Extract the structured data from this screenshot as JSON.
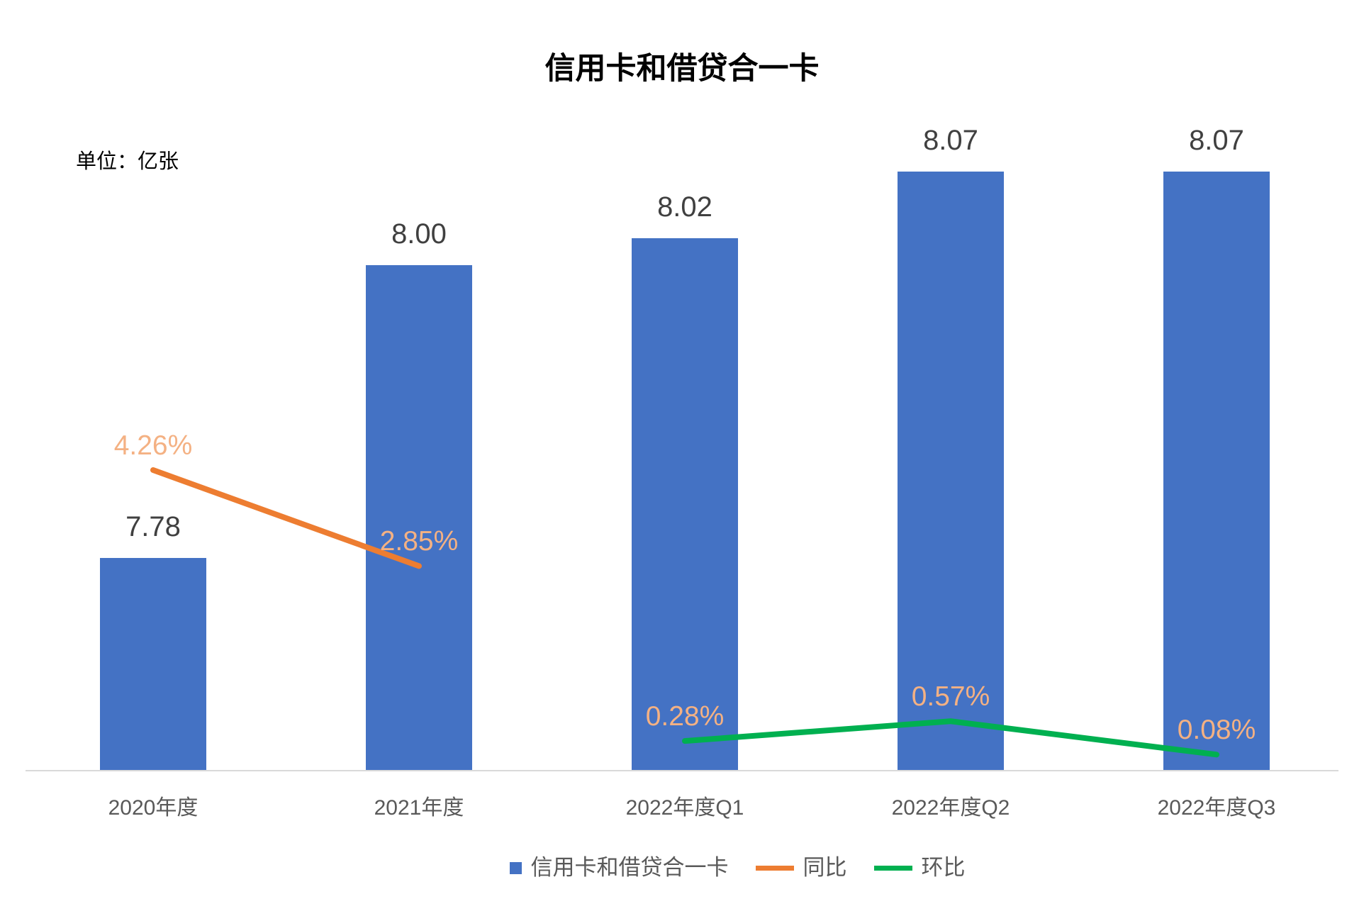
{
  "title": "信用卡和借贷合一卡",
  "unit_label": "单位：亿张",
  "chart_data": {
    "type": "bar+line",
    "title": "信用卡和借贷合一卡",
    "unit": "单位：亿张",
    "categories": [
      "2020年度",
      "2021年度",
      "2022年度Q1",
      "2022年度Q2",
      "2022年度Q3"
    ],
    "series": [
      {
        "name": "信用卡和借贷合一卡",
        "type": "bar",
        "color": "#4472C4",
        "values": [
          7.78,
          8.0,
          8.02,
          8.07,
          8.07
        ],
        "data_labels": [
          "7.78",
          "8.00",
          "8.02",
          "8.07",
          "8.07"
        ],
        "label_color": "#404040"
      },
      {
        "name": "同比",
        "type": "line",
        "axis": "secondary",
        "color": "#ED7D31",
        "values": [
          4.26,
          2.85,
          null,
          null,
          null
        ],
        "data_labels": [
          "4.26%",
          "2.85%",
          null,
          null,
          null
        ],
        "label_color": "#F4B183"
      },
      {
        "name": "环比",
        "type": "line",
        "axis": "secondary",
        "color": "#00B050",
        "values": [
          null,
          null,
          0.28,
          0.57,
          0.08
        ],
        "data_labels": [
          null,
          null,
          "0.28%",
          "0.57%",
          "0.08%"
        ],
        "label_color": "#F4B183"
      }
    ],
    "xlabel": "",
    "ylabel": "",
    "grid": false,
    "value_axis_visible": false,
    "primary_axis_range_estimate": [
      7.62,
      8.2
    ],
    "secondary_axis_unit": "%",
    "legend_position": "bottom"
  },
  "legend": {
    "entries": [
      {
        "label": "信用卡和借贷合一卡",
        "marker": "square",
        "color": "#4472C4"
      },
      {
        "label": "同比",
        "marker": "line",
        "color": "#ED7D31"
      },
      {
        "label": "环比",
        "marker": "line",
        "color": "#00B050"
      }
    ]
  },
  "colors": {
    "bar": "#4472C4",
    "yoy_line": "#ED7D31",
    "mom_line": "#00B050",
    "pct_label": "#F4B183",
    "value_label": "#404040",
    "axis_text": "#595959",
    "axis_line": "#D9D9D9",
    "background": "#ffffff"
  }
}
